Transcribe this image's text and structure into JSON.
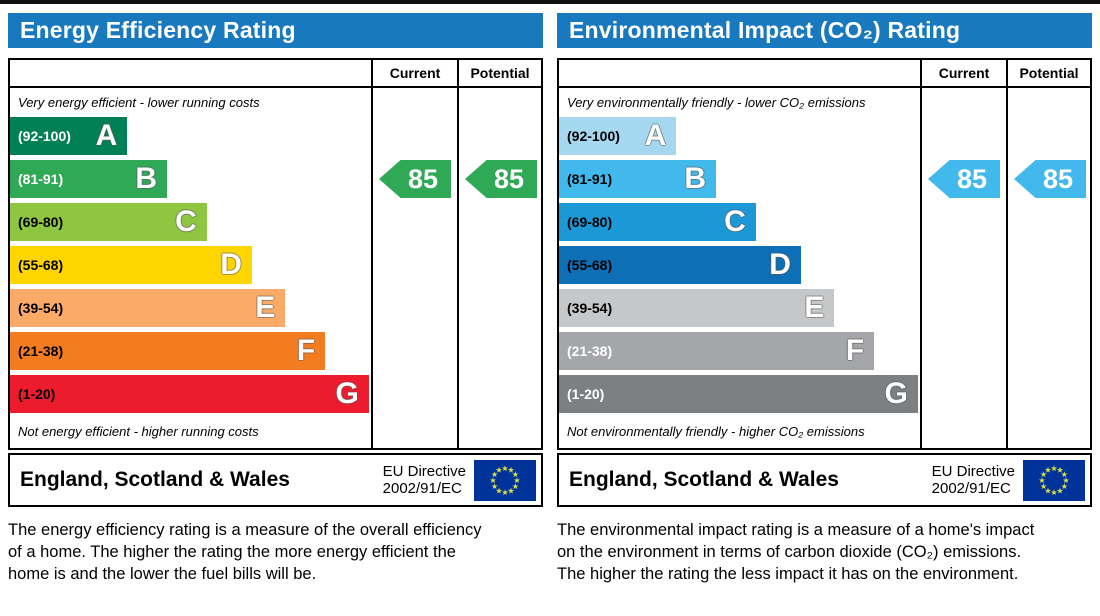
{
  "colors": {
    "header_bg": "#1879bf",
    "header_text": "#ffffff",
    "table_border": "#000000",
    "eu_flag_bg": "#003399",
    "eu_flag_stars": "#dade4a",
    "energy_arrow": "#2fa956",
    "co2_arrow": "#42b9ec"
  },
  "columns": {
    "current": "Current",
    "potential": "Potential"
  },
  "footer": {
    "region": "England, Scotland & Wales",
    "directive_line1": "EU Directive",
    "directive_line2": "2002/91/EC"
  },
  "charts": [
    {
      "title": "Energy Efficiency Rating",
      "top_caption": "Very energy efficient - lower running costs",
      "bottom_caption": "Not energy efficient - higher running costs",
      "current_value": "85",
      "potential_value": "85",
      "arrow_color": "#2fa956",
      "bands": [
        {
          "letter": "A",
          "range": "(92-100)",
          "color": "#008054",
          "range_color": "#ffffff",
          "width_pct": 32.5
        },
        {
          "letter": "B",
          "range": "(81-91)",
          "color": "#2fa956",
          "range_color": "#ffffff",
          "width_pct": 43.5
        },
        {
          "letter": "C",
          "range": "(69-80)",
          "color": "#8ec641",
          "range_color": "#000000",
          "width_pct": 54.5
        },
        {
          "letter": "D",
          "range": "(55-68)",
          "color": "#ffd500",
          "range_color": "#000000",
          "width_pct": 67
        },
        {
          "letter": "E",
          "range": "(39-54)",
          "color": "#fbab67",
          "range_color": "#000000",
          "width_pct": 76.3
        },
        {
          "letter": "F",
          "range": "(21-38)",
          "color": "#f47c20",
          "range_color": "#000000",
          "width_pct": 87.3
        },
        {
          "letter": "G",
          "range": "(1-20)",
          "color": "#ec1c2e",
          "range_color": "#000000",
          "width_pct": 99.4
        }
      ],
      "description": "The energy efficiency rating is a measure of the overall efficiency of a home. The higher the rating the more energy efficient the home is and the lower the fuel bills will be."
    },
    {
      "title": "Environmental Impact (CO₂) Rating",
      "top_caption": "Very environmentally friendly - lower CO₂ emissions",
      "bottom_caption": "Not environmentally friendly - higher CO₂ emissions",
      "current_value": "85",
      "potential_value": "85",
      "arrow_color": "#42b9ec",
      "bands": [
        {
          "letter": "A",
          "range": "(92-100)",
          "color": "#a5d8f0",
          "range_color": "#000000",
          "width_pct": 32.5
        },
        {
          "letter": "B",
          "range": "(81-91)",
          "color": "#42b9ec",
          "range_color": "#000000",
          "width_pct": 43.5
        },
        {
          "letter": "C",
          "range": "(69-80)",
          "color": "#1b98d5",
          "range_color": "#000000",
          "width_pct": 54.5
        },
        {
          "letter": "D",
          "range": "(55-68)",
          "color": "#0d6fb6",
          "range_color": "#000000",
          "width_pct": 67
        },
        {
          "letter": "E",
          "range": "(39-54)",
          "color": "#c6c7c9",
          "range_color": "#000000",
          "width_pct": 76.3
        },
        {
          "letter": "F",
          "range": "(21-38)",
          "color": "#a4a6a9",
          "range_color": "#ffffff",
          "width_pct": 87.3
        },
        {
          "letter": "G",
          "range": "(1-20)",
          "color": "#7d8083",
          "range_color": "#ffffff",
          "width_pct": 99.4
        }
      ],
      "description": "The environmental impact rating is a measure of a home's impact on the environment in terms of carbon dioxide (CO₂) emissions. The higher the rating the less impact it has on the environment."
    }
  ],
  "chart_data": [
    {
      "type": "bar",
      "title": "Energy Efficiency Rating",
      "categories": [
        "A (92-100)",
        "B (81-91)",
        "C (69-80)",
        "D (55-68)",
        "E (39-54)",
        "F (21-38)",
        "G (1-20)"
      ],
      "band_ranges": [
        [
          92,
          100
        ],
        [
          81,
          91
        ],
        [
          69,
          80
        ],
        [
          55,
          68
        ],
        [
          39,
          54
        ],
        [
          21,
          38
        ],
        [
          1,
          20
        ]
      ],
      "series": [
        {
          "name": "Current",
          "values": [
            85
          ],
          "band": "B"
        },
        {
          "name": "Potential",
          "values": [
            85
          ],
          "band": "B"
        }
      ],
      "xlabel": "",
      "ylabel": "",
      "value_range": [
        1,
        100
      ],
      "region": "England, Scotland & Wales",
      "directive": "EU Directive 2002/91/EC"
    },
    {
      "type": "bar",
      "title": "Environmental Impact (CO₂) Rating",
      "categories": [
        "A (92-100)",
        "B (81-91)",
        "C (69-80)",
        "D (55-68)",
        "E (39-54)",
        "F (21-38)",
        "G (1-20)"
      ],
      "band_ranges": [
        [
          92,
          100
        ],
        [
          81,
          91
        ],
        [
          69,
          80
        ],
        [
          55,
          68
        ],
        [
          39,
          54
        ],
        [
          21,
          38
        ],
        [
          1,
          20
        ]
      ],
      "series": [
        {
          "name": "Current",
          "values": [
            85
          ],
          "band": "B"
        },
        {
          "name": "Potential",
          "values": [
            85
          ],
          "band": "B"
        }
      ],
      "xlabel": "",
      "ylabel": "",
      "value_range": [
        1,
        100
      ],
      "region": "England, Scotland & Wales",
      "directive": "EU Directive 2002/91/EC"
    }
  ]
}
